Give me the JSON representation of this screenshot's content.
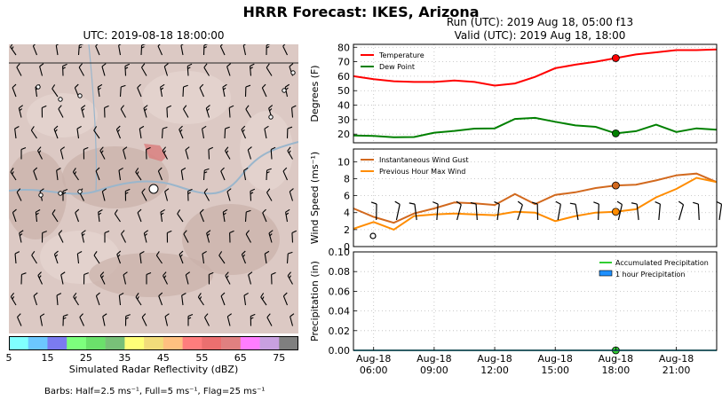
{
  "figure": {
    "suptitle": "HRRR Forecast: IKES, Arizona",
    "map_title": "UTC: 2019-08-18 18:00:00",
    "run_line": "Run (UTC): 2019 Aug 18, 05:00 f13",
    "valid_line": "Valid (UTC): 2019 Aug 18, 18:00",
    "colorbar_label": "Simulated Radar Reflectivity (dBZ)",
    "colorbar_ticks": [
      "5",
      "15",
      "25",
      "35",
      "45",
      "55",
      "65",
      "75"
    ],
    "colorbar_colors": [
      "#80ffff",
      "#6cc7ff",
      "#7b7bf0",
      "#7dff7d",
      "#6be06b",
      "#78c078",
      "#ffff78",
      "#f2dc7a",
      "#ffc080",
      "#ff7d7d",
      "#eb6f6f",
      "#e08080",
      "#ff7dff",
      "#c8a0e0",
      "#7f7f7f"
    ],
    "barb_note": "Barbs: Half=2.5 ms⁻¹, Full=5 ms⁻¹, Flag=25 ms⁻¹"
  },
  "x_ticks": [
    {
      "top": "Aug-18",
      "bottom": "06:00"
    },
    {
      "top": "Aug-18",
      "bottom": "09:00"
    },
    {
      "top": "Aug-18",
      "bottom": "12:00"
    },
    {
      "top": "Aug-18",
      "bottom": "15:00"
    },
    {
      "top": "Aug-18",
      "bottom": "18:00"
    },
    {
      "top": "Aug-18",
      "bottom": "21:00"
    }
  ],
  "chart_data": [
    {
      "type": "line",
      "ylabel": "Degrees (F)",
      "x": [
        "05:00",
        "06:00",
        "07:00",
        "08:00",
        "09:00",
        "10:00",
        "11:00",
        "12:00",
        "13:00",
        "14:00",
        "15:00",
        "16:00",
        "17:00",
        "18:00",
        "19:00",
        "20:00",
        "21:00",
        "22:00",
        "23:00"
      ],
      "ylim": [
        14,
        82
      ],
      "yticks": [
        20,
        30,
        40,
        50,
        60,
        70,
        80
      ],
      "series": [
        {
          "name": "Temperature",
          "color": "#ff0000",
          "values": [
            60,
            58,
            56.5,
            56,
            56,
            57,
            56,
            53.5,
            55,
            59.5,
            65.5,
            68,
            70,
            72.5,
            75,
            76.5,
            78,
            78,
            78.5
          ]
        },
        {
          "name": "Dew Point",
          "color": "#008000",
          "values": [
            19,
            18.7,
            17.8,
            18,
            21,
            22.2,
            23.8,
            24,
            30.5,
            31.2,
            28.5,
            26,
            25,
            20.5,
            22,
            26.5,
            21.5,
            24,
            23
          ]
        }
      ],
      "marker_x": "18:00",
      "legend": "top-left",
      "grid": true
    },
    {
      "type": "line",
      "ylabel": "Wind Speed (ms⁻¹)",
      "x": [
        "05:00",
        "06:00",
        "07:00",
        "08:00",
        "09:00",
        "10:00",
        "11:00",
        "12:00",
        "13:00",
        "14:00",
        "15:00",
        "16:00",
        "17:00",
        "18:00",
        "19:00",
        "20:00",
        "21:00",
        "22:00",
        "23:00"
      ],
      "ylim": [
        0,
        11.5
      ],
      "yticks": [
        0,
        2,
        4,
        6,
        8,
        10
      ],
      "series": [
        {
          "name": "Instantaneous Wind Gust",
          "color": "#d2691e",
          "values": [
            4.5,
            3.5,
            2.8,
            3.9,
            4.5,
            5.2,
            5.1,
            4.9,
            6.2,
            5.0,
            6.1,
            6.4,
            6.9,
            7.2,
            7.3,
            7.8,
            8.4,
            8.6,
            7.6
          ]
        },
        {
          "name": "Previous Hour Max Wind",
          "color": "#ff8c00",
          "values": [
            2.1,
            2.9,
            2.0,
            3.6,
            3.8,
            3.9,
            3.8,
            3.7,
            4.1,
            4.0,
            3.0,
            3.6,
            4.0,
            4.1,
            4.4,
            5.8,
            6.8,
            8.1,
            7.6
          ]
        }
      ],
      "marker_x": "18:00",
      "legend": "top-left",
      "grid": true
    },
    {
      "type": "line",
      "ylabel": "Precipitation (in)",
      "x": [
        "05:00",
        "06:00",
        "07:00",
        "08:00",
        "09:00",
        "10:00",
        "11:00",
        "12:00",
        "13:00",
        "14:00",
        "15:00",
        "16:00",
        "17:00",
        "18:00",
        "19:00",
        "20:00",
        "21:00",
        "22:00",
        "23:00"
      ],
      "ylim": [
        0,
        0.1
      ],
      "yticks": [
        "0.00",
        "0.02",
        "0.04",
        "0.06",
        "0.08",
        "0.10"
      ],
      "series": [
        {
          "name": "Accumulated Precipitation",
          "color": "#32cd32",
          "values": [
            0,
            0,
            0,
            0,
            0,
            0,
            0,
            0,
            0,
            0,
            0,
            0,
            0,
            0,
            0,
            0,
            0,
            0,
            0
          ]
        },
        {
          "name": "1 hour Precipitation",
          "color": "#1e90ff",
          "values": [
            0,
            0,
            0,
            0,
            0,
            0,
            0,
            0,
            0,
            0,
            0,
            0,
            0,
            0,
            0,
            0,
            0,
            0,
            0
          ]
        }
      ],
      "marker_x": "18:00",
      "legend": "top-right",
      "grid": true
    }
  ]
}
